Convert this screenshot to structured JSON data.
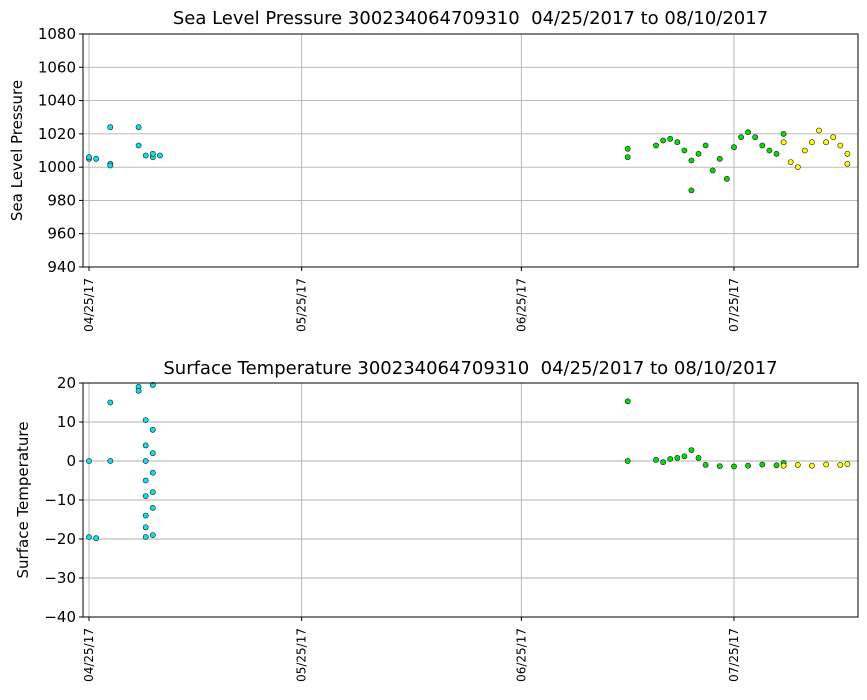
{
  "chart_data": [
    {
      "type": "scatter",
      "title": "Sea Level Pressure 300234064709310  04/25/2017 to 08/10/2017",
      "xlabel": "",
      "ylabel": "Sea Level Pressure",
      "x_type": "date",
      "xlim": [
        "2017-04-25",
        "2017-08-10"
      ],
      "ylim": [
        940,
        1080
      ],
      "yticks": [
        "1080",
        "1060",
        "1040",
        "1020",
        "1000",
        "980",
        "960",
        "940"
      ],
      "xticks": [
        "04/25/17",
        "05/25/17",
        "06/25/17",
        "07/25/17"
      ],
      "grid": true,
      "series": [
        {
          "color": "#00e5ee",
          "points": [
            [
              "2017-04-25",
              1005
            ],
            [
              "2017-04-25",
              1006
            ],
            [
              "2017-04-26",
              1005
            ],
            [
              "2017-04-28",
              1024
            ],
            [
              "2017-04-28",
              1002
            ],
            [
              "2017-04-28",
              1001
            ],
            [
              "2017-05-02",
              1024
            ],
            [
              "2017-05-02",
              1013
            ],
            [
              "2017-05-03",
              1007
            ],
            [
              "2017-05-04",
              1006
            ],
            [
              "2017-05-04",
              1008
            ],
            [
              "2017-05-05",
              1007
            ]
          ]
        },
        {
          "color": "#00e000",
          "points": [
            [
              "2017-07-10",
              1011
            ],
            [
              "2017-07-10",
              1006
            ],
            [
              "2017-07-14",
              1013
            ],
            [
              "2017-07-15",
              1016
            ],
            [
              "2017-07-16",
              1017
            ],
            [
              "2017-07-17",
              1015
            ],
            [
              "2017-07-18",
              1010
            ],
            [
              "2017-07-19",
              1004
            ],
            [
              "2017-07-19",
              986
            ],
            [
              "2017-07-20",
              1008
            ],
            [
              "2017-07-21",
              1013
            ],
            [
              "2017-07-22",
              998
            ],
            [
              "2017-07-23",
              1005
            ],
            [
              "2017-07-24",
              993
            ],
            [
              "2017-07-25",
              1012
            ],
            [
              "2017-07-26",
              1018
            ],
            [
              "2017-07-27",
              1021
            ],
            [
              "2017-07-28",
              1018
            ],
            [
              "2017-07-29",
              1013
            ],
            [
              "2017-07-30",
              1010
            ],
            [
              "2017-07-31",
              1008
            ],
            [
              "2017-08-01",
              1020
            ]
          ]
        },
        {
          "color": "#ffff00",
          "points": [
            [
              "2017-08-01",
              1015
            ],
            [
              "2017-08-02",
              1003
            ],
            [
              "2017-08-03",
              1000
            ],
            [
              "2017-08-04",
              1010
            ],
            [
              "2017-08-05",
              1015
            ],
            [
              "2017-08-06",
              1022
            ],
            [
              "2017-08-07",
              1015
            ],
            [
              "2017-08-08",
              1018
            ],
            [
              "2017-08-09",
              1013
            ],
            [
              "2017-08-10",
              1002
            ],
            [
              "2017-08-10",
              1008
            ]
          ]
        }
      ]
    },
    {
      "type": "scatter",
      "title": "Surface Temperature 300234064709310  04/25/2017 to 08/10/2017",
      "xlabel": "",
      "ylabel": "Surface Temperature",
      "x_type": "date",
      "xlim": [
        "2017-04-25",
        "2017-08-10"
      ],
      "ylim": [
        -40,
        20
      ],
      "yticks": [
        "20",
        "10",
        "0",
        "−10",
        "−20",
        "−30",
        "−40"
      ],
      "xticks": [
        "04/25/17",
        "05/25/17",
        "06/25/17",
        "07/25/17"
      ],
      "grid": true,
      "series": [
        {
          "color": "#00e5ee",
          "points": [
            [
              "2017-04-25",
              0
            ],
            [
              "2017-04-25",
              -19.5
            ],
            [
              "2017-04-26",
              -19.8
            ],
            [
              "2017-04-28",
              15
            ],
            [
              "2017-04-28",
              0
            ],
            [
              "2017-05-02",
              19
            ],
            [
              "2017-05-02",
              18
            ],
            [
              "2017-05-03",
              0
            ],
            [
              "2017-05-03",
              10.5
            ],
            [
              "2017-05-03",
              4
            ],
            [
              "2017-05-03",
              -5
            ],
            [
              "2017-05-03",
              -9
            ],
            [
              "2017-05-03",
              -14
            ],
            [
              "2017-05-03",
              -17
            ],
            [
              "2017-05-03",
              -19.5
            ],
            [
              "2017-05-04",
              19.5
            ],
            [
              "2017-05-04",
              8
            ],
            [
              "2017-05-04",
              2
            ],
            [
              "2017-05-04",
              -3
            ],
            [
              "2017-05-04",
              -8
            ],
            [
              "2017-05-04",
              -12
            ],
            [
              "2017-05-04",
              -19
            ]
          ]
        },
        {
          "color": "#00e000",
          "points": [
            [
              "2017-07-10",
              15.3
            ],
            [
              "2017-07-10",
              0
            ],
            [
              "2017-07-14",
              0.3
            ],
            [
              "2017-07-15",
              -0.3
            ],
            [
              "2017-07-16",
              0.5
            ],
            [
              "2017-07-17",
              0.8
            ],
            [
              "2017-07-18",
              1.2
            ],
            [
              "2017-07-19",
              2.8
            ],
            [
              "2017-07-20",
              0.8
            ],
            [
              "2017-07-21",
              -1.0
            ],
            [
              "2017-07-23",
              -1.3
            ],
            [
              "2017-07-25",
              -1.4
            ],
            [
              "2017-07-27",
              -1.2
            ],
            [
              "2017-07-29",
              -0.9
            ],
            [
              "2017-07-31",
              -1.1
            ],
            [
              "2017-08-01",
              -0.5
            ]
          ]
        },
        {
          "color": "#ffff00",
          "points": [
            [
              "2017-08-01",
              -1.2
            ],
            [
              "2017-08-03",
              -1.0
            ],
            [
              "2017-08-05",
              -1.2
            ],
            [
              "2017-08-07",
              -0.9
            ],
            [
              "2017-08-09",
              -1.0
            ],
            [
              "2017-08-10",
              -0.8
            ]
          ]
        }
      ]
    }
  ]
}
